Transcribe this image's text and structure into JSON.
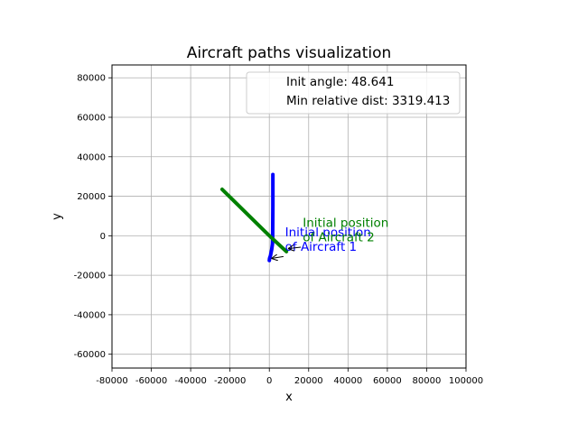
{
  "chart_data": {
    "type": "line",
    "title": "Aircraft paths visualization",
    "xlabel": "x",
    "ylabel": "y",
    "xlim": [
      -80000,
      100000
    ],
    "ylim": [
      -67000,
      86500
    ],
    "xticks": [
      -80000,
      -60000,
      -40000,
      -20000,
      0,
      20000,
      40000,
      60000,
      80000,
      100000
    ],
    "yticks": [
      -60000,
      -40000,
      -20000,
      0,
      20000,
      40000,
      60000,
      80000
    ],
    "grid": true,
    "legend_placement": "top-right",
    "legend_entries": [
      "Init angle: 48.641",
      "Min relative dist: 3319.413"
    ],
    "series": [
      {
        "color": "#0000ff",
        "x": [
          1800,
          1800,
          1700,
          1600,
          1200,
          600,
          100,
          0
        ],
        "y": [
          31000,
          15000,
          0,
          -4000,
          -7000,
          -10000,
          -11500,
          -12500
        ]
      },
      {
        "color": "#008000",
        "x": [
          8700,
          0,
          -24000
        ],
        "y": [
          -8000,
          0,
          23500
        ]
      }
    ],
    "annotations": [
      {
        "line1": "Initial position",
        "line2": "of Aircraft 1",
        "color": "#0000ff",
        "point": [
          1000,
          -11500
        ],
        "arrow_from": [
          7200,
          -10500
        ],
        "text_pos": [
          8000,
          -200
        ]
      },
      {
        "line1": "Initial position",
        "line2": "of Aircraft 2",
        "color": "#008000",
        "point": [
          9500,
          -6500
        ],
        "arrow_from": [
          16000,
          -5800
        ],
        "text_pos": [
          17000,
          4500
        ]
      }
    ]
  }
}
